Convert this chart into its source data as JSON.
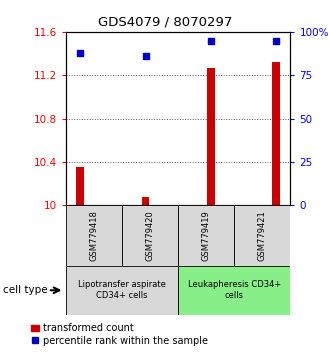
{
  "title": "GDS4079 / 8070297",
  "samples": [
    "GSM779418",
    "GSM779420",
    "GSM779419",
    "GSM779421"
  ],
  "transformed_counts": [
    10.35,
    10.08,
    11.27,
    11.32
  ],
  "percentile_ranks": [
    88,
    86,
    95,
    95
  ],
  "ylim_left": [
    10.0,
    11.6
  ],
  "ylim_right": [
    0,
    100
  ],
  "yticks_left": [
    10.0,
    10.4,
    10.8,
    11.2,
    11.6
  ],
  "yticks_right": [
    0,
    25,
    50,
    75,
    100
  ],
  "ytick_labels_left": [
    "10",
    "10.4",
    "10.8",
    "11.2",
    "11.6"
  ],
  "ytick_labels_right": [
    "0",
    "25",
    "50",
    "75",
    "100%"
  ],
  "bar_color": "#cc0000",
  "dot_color": "#0000cc",
  "group1_label": "Lipotransfer aspirate\nCD34+ cells",
  "group2_label": "Leukapheresis CD34+\ncells",
  "group1_color": "#d8d8d8",
  "group2_color": "#88ee88",
  "cell_type_label": "cell type",
  "legend_bar_label": "transformed count",
  "legend_dot_label": "percentile rank within the sample",
  "grid_color": "#888888",
  "bar_width": 0.12,
  "dot_size": 18,
  "fig_width": 3.3,
  "fig_height": 3.54,
  "dpi": 100
}
